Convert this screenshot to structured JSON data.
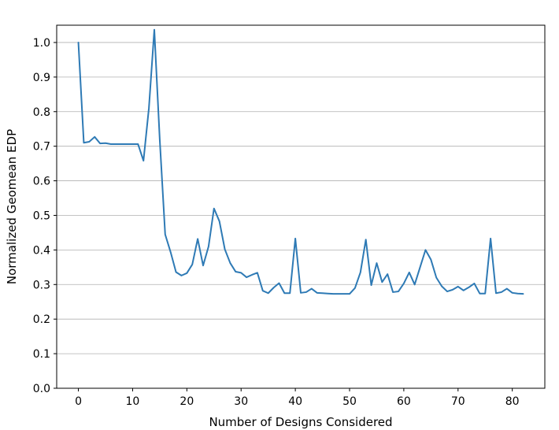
{
  "chart_data": {
    "type": "line",
    "title": "",
    "xlabel": "Number of Designs Considered",
    "ylabel": "Normalized Geomean EDP",
    "xlim": [
      -4,
      86
    ],
    "ylim": [
      0.0,
      1.05
    ],
    "xticks": [
      0,
      10,
      20,
      30,
      40,
      50,
      60,
      70,
      80
    ],
    "yticks": [
      0.0,
      0.1,
      0.2,
      0.3,
      0.4,
      0.5,
      0.6,
      0.7,
      0.8,
      0.9,
      1.0
    ],
    "xtick_labels": [
      "0",
      "10",
      "20",
      "30",
      "40",
      "50",
      "60",
      "70",
      "80"
    ],
    "ytick_labels": [
      "0.0",
      "0.1",
      "0.2",
      "0.3",
      "0.4",
      "0.5",
      "0.6",
      "0.7",
      "0.8",
      "0.9",
      "1.0"
    ],
    "grid": "y",
    "legend": "none",
    "color": "#2e7ab5",
    "series": [
      {
        "x": [
          0,
          1,
          2,
          3,
          4,
          5,
          6,
          7,
          8,
          9,
          10,
          11,
          12,
          13,
          14,
          15,
          16,
          17,
          18,
          19,
          20,
          21,
          22,
          23,
          24,
          25,
          26,
          27,
          28,
          29,
          30,
          31,
          32,
          33,
          34,
          35,
          36,
          37,
          38,
          39,
          40,
          41,
          42,
          43,
          44,
          45,
          46,
          47,
          48,
          49,
          50,
          51,
          52,
          53,
          54,
          55,
          56,
          57,
          58,
          59,
          60,
          61,
          62,
          63,
          64,
          65,
          66,
          67,
          68,
          69,
          70,
          71,
          72,
          73,
          74,
          75,
          76,
          77,
          78,
          79,
          80,
          81,
          82
        ],
        "values": [
          1.0,
          0.71,
          0.713,
          0.727,
          0.708,
          0.709,
          0.706,
          0.706,
          0.706,
          0.706,
          0.706,
          0.706,
          0.658,
          0.81,
          1.037,
          0.72,
          0.445,
          0.394,
          0.336,
          0.326,
          0.333,
          0.358,
          0.432,
          0.355,
          0.41,
          0.52,
          0.483,
          0.402,
          0.362,
          0.337,
          0.334,
          0.321,
          0.328,
          0.334,
          0.282,
          0.275,
          0.291,
          0.304,
          0.275,
          0.275,
          0.433,
          0.276,
          0.278,
          0.288,
          0.276,
          0.275,
          0.274,
          0.273,
          0.273,
          0.273,
          0.273,
          0.29,
          0.335,
          0.43,
          0.298,
          0.362,
          0.307,
          0.33,
          0.278,
          0.28,
          0.303,
          0.335,
          0.3,
          0.35,
          0.4,
          0.372,
          0.32,
          0.295,
          0.28,
          0.285,
          0.294,
          0.283,
          0.292,
          0.303,
          0.274,
          0.274,
          0.433,
          0.275,
          0.278,
          0.288,
          0.276,
          0.274,
          0.273
        ]
      }
    ]
  }
}
